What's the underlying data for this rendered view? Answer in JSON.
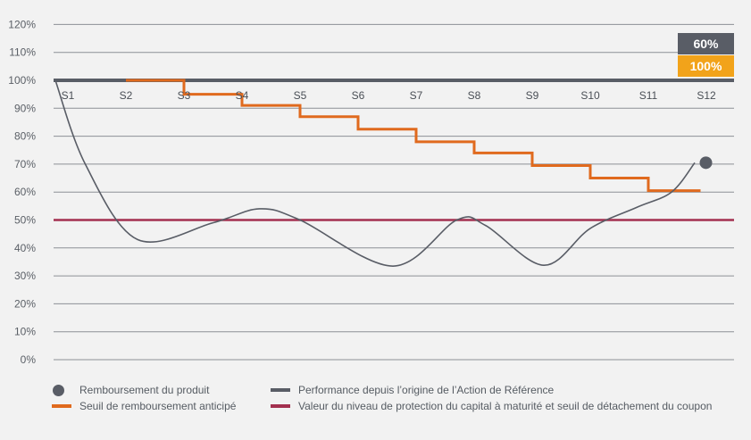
{
  "chart_data": {
    "type": "line",
    "y_ticks": [
      "0%",
      "10%",
      "20%",
      "30%",
      "40%",
      "50%",
      "60%",
      "70%",
      "80%",
      "90%",
      "100%",
      "110%",
      "120%"
    ],
    "ylim": [
      0,
      120
    ],
    "periods": [
      "S1",
      "S2",
      "S3",
      "S4",
      "S5",
      "S6",
      "S7",
      "S8",
      "S9",
      "S10",
      "S11",
      "S12"
    ],
    "grid": true,
    "series": [
      {
        "key": "performance",
        "color": "#595d66",
        "points": [
          [
            0,
            100
          ],
          [
            0.3,
            70
          ],
          [
            1.2,
            43
          ],
          [
            2.5,
            49
          ],
          [
            3.3,
            54
          ],
          [
            4.0,
            50
          ],
          [
            5.6,
            33.5
          ],
          [
            6.7,
            50
          ],
          [
            7.2,
            48
          ],
          [
            8.2,
            33.8
          ],
          [
            9.0,
            47
          ],
          [
            9.8,
            54.5
          ],
          [
            10.4,
            60
          ],
          [
            10.8,
            70.5
          ]
        ]
      },
      {
        "key": "early_redemption_threshold",
        "color": "#e06a1e",
        "steps": [
          {
            "from": 1,
            "to": 2,
            "value": 100
          },
          {
            "from": 2,
            "to": 3,
            "value": 95
          },
          {
            "from": 3,
            "to": 4,
            "value": 91
          },
          {
            "from": 4,
            "to": 5,
            "value": 87
          },
          {
            "from": 5,
            "to": 6,
            "value": 82.5
          },
          {
            "from": 6,
            "to": 7,
            "value": 78
          },
          {
            "from": 7,
            "to": 8,
            "value": 74
          },
          {
            "from": 8,
            "to": 9,
            "value": 69.5
          },
          {
            "from": 9,
            "to": 10,
            "value": 65
          },
          {
            "from": 10,
            "to": 10.9,
            "value": 60.5
          }
        ]
      },
      {
        "key": "protection_level",
        "color": "#a3304f",
        "value": 50
      },
      {
        "key": "reference_level",
        "color": "#595d66",
        "value": 100
      }
    ],
    "redemption_point": {
      "period": "S12",
      "value": 70.5,
      "color": "#595d66"
    },
    "end_boxes": [
      {
        "label": "60%",
        "color": "#595d66"
      },
      {
        "label": "100%",
        "color": "#f2a31a"
      }
    ]
  },
  "legend": {
    "items": [
      {
        "key": "redemption",
        "label": "Remboursement du produit",
        "color": "#595d66"
      },
      {
        "key": "performance",
        "label": "Performance depuis l’origine de l’Action de Référence",
        "color": "#595d66"
      },
      {
        "key": "threshold",
        "label": "Seuil de remboursement anticipé",
        "color": "#e06a1e"
      },
      {
        "key": "protection",
        "label": "Valeur du niveau de protection du capital à maturité et seuil de détachement du coupon",
        "color": "#a3304f"
      }
    ]
  }
}
